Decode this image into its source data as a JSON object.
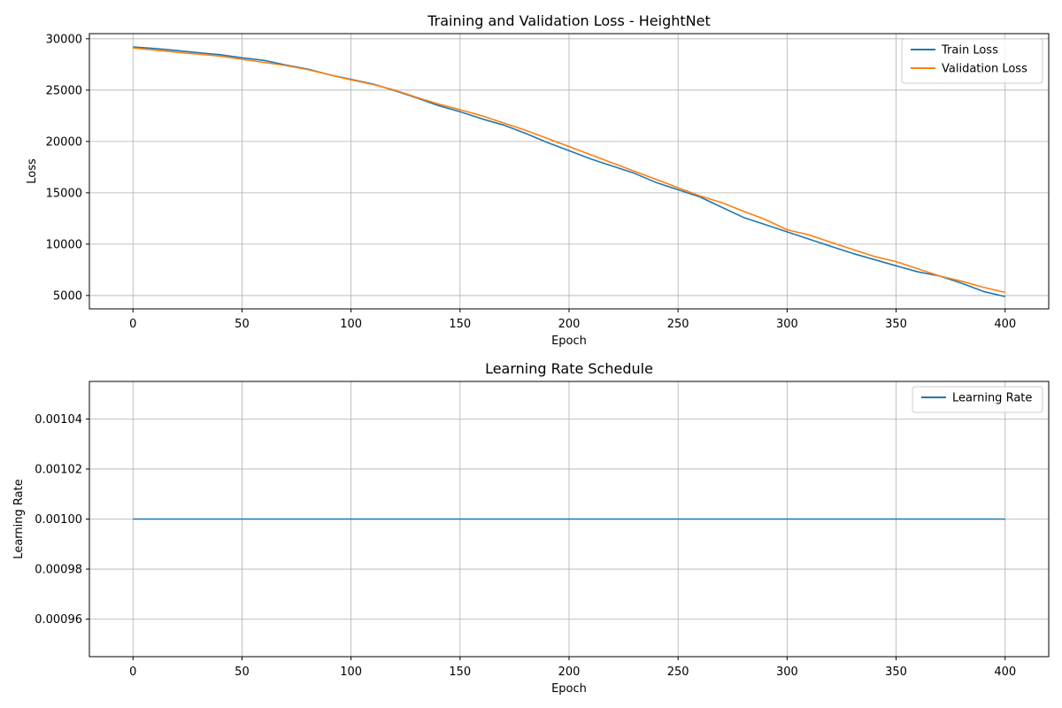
{
  "chart_data": [
    {
      "type": "line",
      "title": "Training and Validation Loss - HeightNet",
      "xlabel": "Epoch",
      "ylabel": "Loss",
      "xlim": [
        -20,
        420
      ],
      "ylim": [
        3700,
        30500
      ],
      "xticks": [
        0,
        50,
        100,
        150,
        200,
        250,
        300,
        350,
        400
      ],
      "yticks": [
        5000,
        10000,
        15000,
        20000,
        25000,
        30000
      ],
      "grid": true,
      "legend": "top-right",
      "series": [
        {
          "name": "Train Loss",
          "color": "#1f77b4",
          "x": [
            0,
            10,
            20,
            30,
            40,
            50,
            60,
            70,
            80,
            90,
            100,
            110,
            120,
            130,
            140,
            150,
            160,
            170,
            180,
            190,
            200,
            210,
            220,
            230,
            240,
            250,
            260,
            270,
            280,
            290,
            300,
            310,
            320,
            330,
            340,
            350,
            360,
            370,
            380,
            390,
            400
          ],
          "values": [
            29200,
            29050,
            28850,
            28650,
            28450,
            28150,
            27900,
            27450,
            27050,
            26500,
            26050,
            25600,
            24950,
            24250,
            23500,
            22900,
            22200,
            21600,
            20800,
            19900,
            19100,
            18300,
            17600,
            16900,
            16000,
            15300,
            14600,
            13600,
            12600,
            11900,
            11200,
            10500,
            9800,
            9100,
            8500,
            7900,
            7300,
            6900,
            6200,
            5400,
            4900
          ]
        },
        {
          "name": "Validation Loss",
          "color": "#ff7f0e",
          "x": [
            0,
            10,
            20,
            30,
            40,
            50,
            60,
            70,
            80,
            90,
            100,
            110,
            120,
            130,
            140,
            150,
            160,
            170,
            180,
            190,
            200,
            210,
            220,
            230,
            240,
            250,
            260,
            270,
            280,
            290,
            300,
            310,
            320,
            330,
            340,
            350,
            360,
            370,
            380,
            390,
            400
          ],
          "values": [
            29100,
            28900,
            28700,
            28500,
            28300,
            28000,
            27700,
            27400,
            27000,
            26500,
            26000,
            25550,
            25000,
            24300,
            23650,
            23100,
            22500,
            21800,
            21100,
            20300,
            19500,
            18700,
            17900,
            17100,
            16300,
            15500,
            14700,
            14050,
            13200,
            12400,
            11400,
            10900,
            10200,
            9500,
            8800,
            8300,
            7600,
            6900,
            6400,
            5800,
            5300
          ]
        }
      ]
    },
    {
      "type": "line",
      "title": "Learning Rate Schedule",
      "xlabel": "Epoch",
      "ylabel": "Learning Rate",
      "xlim": [
        -20,
        420
      ],
      "ylim": [
        0.000945,
        0.001055
      ],
      "xticks": [
        0,
        50,
        100,
        150,
        200,
        250,
        300,
        350,
        400
      ],
      "yticks": [
        0.00096,
        0.00098,
        0.001,
        0.00102,
        0.00104
      ],
      "ytick_labels": [
        "0.00096",
        "0.00098",
        "0.00100",
        "0.00102",
        "0.00104"
      ],
      "grid": true,
      "legend": "top-right",
      "series": [
        {
          "name": "Learning Rate",
          "color": "#1f77b4",
          "x": [
            0,
            400
          ],
          "values": [
            0.001,
            0.001
          ]
        }
      ]
    }
  ]
}
